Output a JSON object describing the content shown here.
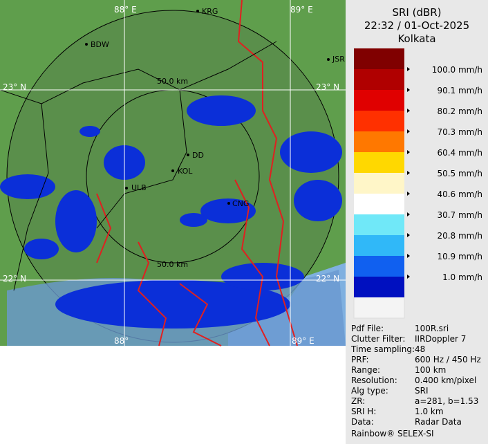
{
  "panel": {
    "title": "SRI (dBR)",
    "datetime": "22:32 / 01-Oct-2025",
    "station": "Kolkata"
  },
  "legend": {
    "colors": [
      "#800000",
      "#b00000",
      "#e00000",
      "#ff3000",
      "#ff7800",
      "#ffd800",
      "#fff6c8",
      "#ffffff",
      "#70e8f8",
      "#30b8f8",
      "#1060f0",
      "#0010c0"
    ],
    "labels": [
      "100.0 mm/h",
      "90.1 mm/h",
      "80.2 mm/h",
      "70.3 mm/h",
      "60.4 mm/h",
      "50.5 mm/h",
      "40.6 mm/h",
      "30.7 mm/h",
      "20.8 mm/h",
      "10.9 mm/h",
      "1.0 mm/h"
    ]
  },
  "map": {
    "longitudes": [
      "88° E",
      "89° E",
      "88°",
      "89° E"
    ],
    "latitudes": [
      "23° N",
      "23° N",
      "22° N",
      "22° N"
    ],
    "rings": [
      "50.0 km",
      "50.0 km"
    ],
    "places": [
      "KRG",
      "BDW",
      "JSR",
      "DD",
      "KOL",
      "ULB",
      "CNG"
    ]
  },
  "info": [
    [
      "Pdf File:",
      "100R.sri"
    ],
    [
      "Clutter Filter:",
      "IIRDoppler 7"
    ],
    [
      "Time sampling:",
      "48"
    ],
    [
      "PRF:",
      "600 Hz / 450 Hz"
    ],
    [
      "Range:",
      "100 km"
    ],
    [
      "Resolution:",
      "0.400 km/pixel"
    ],
    [
      "Alg type:",
      "SRI"
    ],
    [
      "ZR:",
      "a=281, b=1.53"
    ],
    [
      "SRI H:",
      "1.0 km"
    ],
    [
      "Data:",
      "Radar Data"
    ]
  ],
  "footer": "Rainbow® SELEX-SI"
}
